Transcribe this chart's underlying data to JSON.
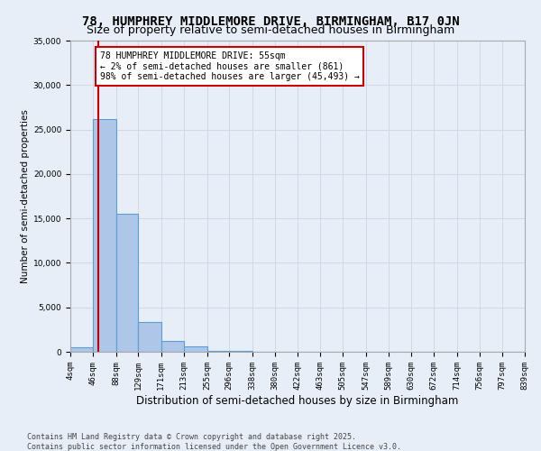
{
  "title": "78, HUMPHREY MIDDLEMORE DRIVE, BIRMINGHAM, B17 0JN",
  "subtitle": "Size of property relative to semi-detached houses in Birmingham",
  "xlabel": "Distribution of semi-detached houses by size in Birmingham",
  "ylabel": "Number of semi-detached properties",
  "bin_edges": [
    4,
    46,
    88,
    129,
    171,
    213,
    255,
    296,
    338,
    380,
    422,
    463,
    505,
    547,
    589,
    630,
    672,
    714,
    756,
    797,
    839
  ],
  "bar_heights": [
    500,
    26200,
    15500,
    3300,
    1200,
    600,
    120,
    60,
    45,
    25,
    15,
    8,
    6,
    4,
    3,
    2,
    2,
    1,
    1,
    0
  ],
  "bar_color": "#aec6e8",
  "bar_edge_color": "#5a9fd4",
  "grid_color": "#d0d8e8",
  "background_color": "#e8eef8",
  "red_line_x": 55,
  "annotation_text": "78 HUMPHREY MIDDLEMORE DRIVE: 55sqm\n← 2% of semi-detached houses are smaller (861)\n98% of semi-detached houses are larger (45,493) →",
  "annotation_box_color": "#ffffff",
  "annotation_text_color": "#000000",
  "red_line_color": "#cc0000",
  "ylim": [
    0,
    35000
  ],
  "yticks": [
    0,
    5000,
    10000,
    15000,
    20000,
    25000,
    30000,
    35000
  ],
  "footnote": "Contains HM Land Registry data © Crown copyright and database right 2025.\nContains public sector information licensed under the Open Government Licence v3.0.",
  "title_fontsize": 10,
  "subtitle_fontsize": 9,
  "xlabel_fontsize": 8.5,
  "ylabel_fontsize": 7.5,
  "tick_fontsize": 6.5,
  "annotation_fontsize": 7,
  "footnote_fontsize": 6
}
